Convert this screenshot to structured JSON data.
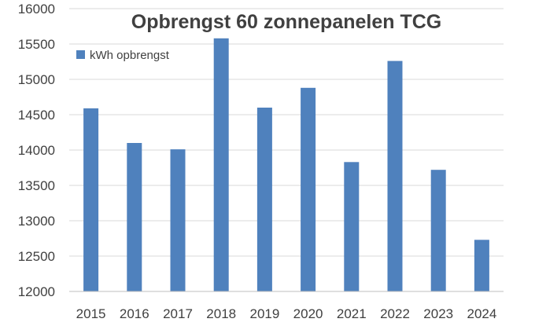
{
  "chart_data": {
    "type": "bar",
    "title": "Opbrengst 60 zonnepanelen TCG",
    "categories": [
      "2015",
      "2016",
      "2017",
      "2018",
      "2019",
      "2020",
      "2021",
      "2022",
      "2023",
      "2024"
    ],
    "series": [
      {
        "name": "kWh opbrengst",
        "color": "#4f81bd",
        "values": [
          14590,
          14100,
          14010,
          15580,
          14600,
          14880,
          13830,
          15260,
          13720,
          12730
        ]
      }
    ],
    "ylim": [
      12000,
      16000
    ],
    "yticks": [
      "12000",
      "12500",
      "13000",
      "13500",
      "14000",
      "14500",
      "15000",
      "15500",
      "16000"
    ],
    "grid": true,
    "legend": "top-left"
  }
}
